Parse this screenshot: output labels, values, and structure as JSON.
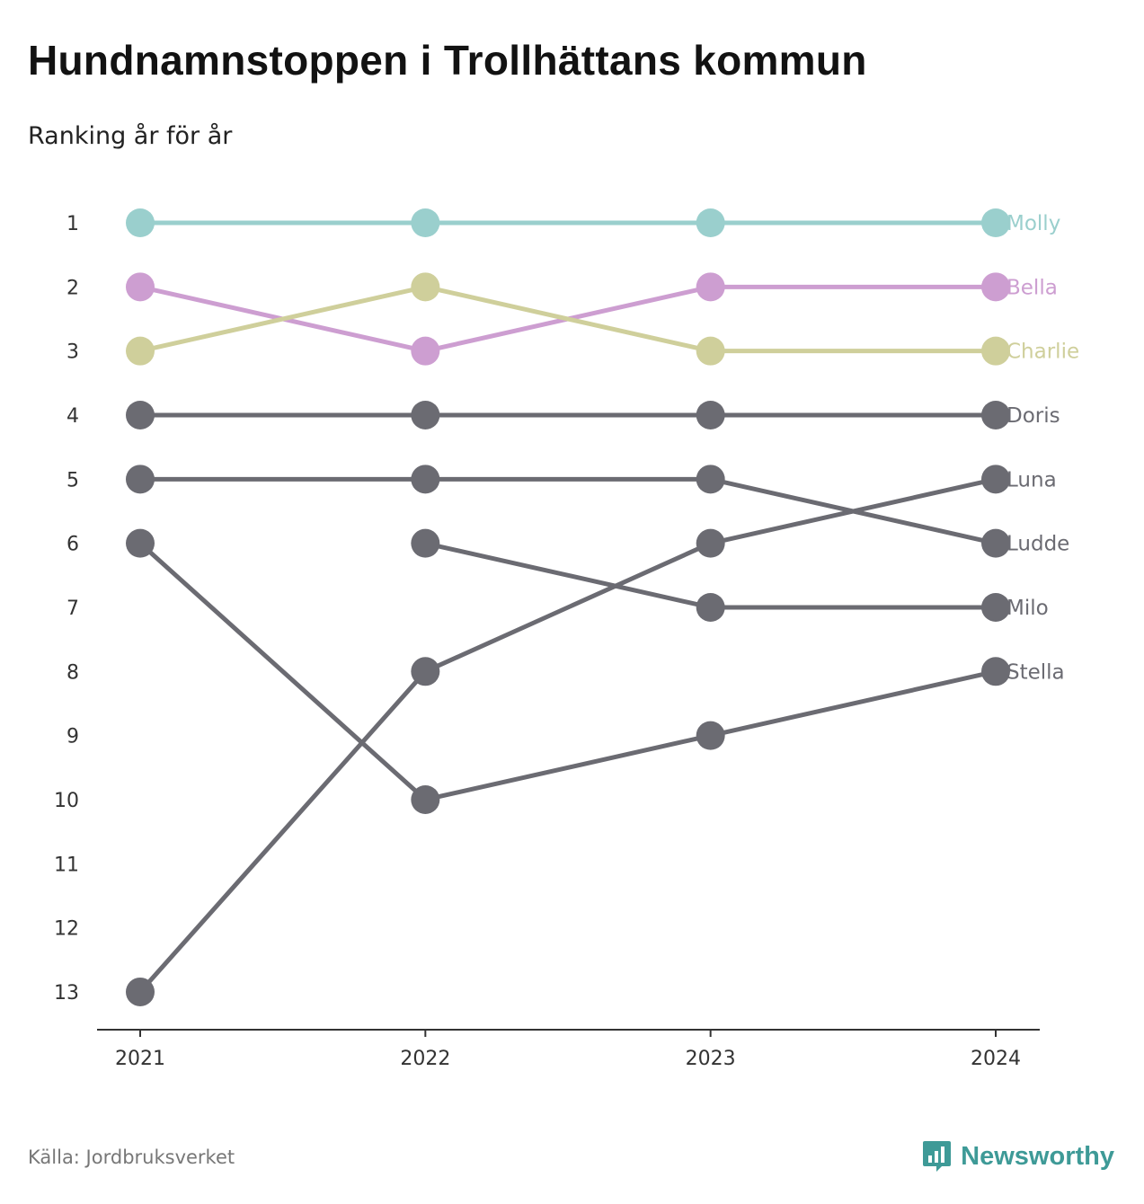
{
  "header": {
    "title": "Hundnamnstoppen i Trollhättans kommun",
    "subtitle": "Ranking år för år"
  },
  "footer": {
    "source": "Källa: Jordbruksverket",
    "brand": "Newsworthy"
  },
  "colors": {
    "Molly": "#9acfcd",
    "Bella": "#cd9ed1",
    "Charlie": "#cfcf9b",
    "other": "#6b6b72",
    "axis": "#333333",
    "brand": "#3e9a97"
  },
  "icons": {
    "brand": "bar-chart-speech-bubble-icon"
  },
  "chart_data": {
    "type": "line",
    "subtype": "bump",
    "x": [
      "2021",
      "2022",
      "2023",
      "2024"
    ],
    "y_ticks": [
      1,
      2,
      3,
      4,
      5,
      6,
      7,
      8,
      9,
      10,
      11,
      12,
      13
    ],
    "ylim": [
      1,
      13
    ],
    "y_inverted": true,
    "grid": false,
    "legend": "direct labels at right end of each line",
    "series": [
      {
        "name": "Molly",
        "values": [
          1,
          1,
          1,
          1
        ]
      },
      {
        "name": "Bella",
        "values": [
          2,
          3,
          2,
          2
        ]
      },
      {
        "name": "Charlie",
        "values": [
          3,
          2,
          3,
          3
        ]
      },
      {
        "name": "Doris",
        "values": [
          4,
          4,
          4,
          4
        ]
      },
      {
        "name": "Luna",
        "values": [
          13,
          8,
          6,
          5
        ]
      },
      {
        "name": "Ludde",
        "values": [
          5,
          5,
          5,
          6
        ]
      },
      {
        "name": "Milo",
        "values": [
          null,
          6,
          7,
          7
        ]
      },
      {
        "name": "Stella",
        "values": [
          6,
          10,
          9,
          8
        ]
      }
    ]
  }
}
